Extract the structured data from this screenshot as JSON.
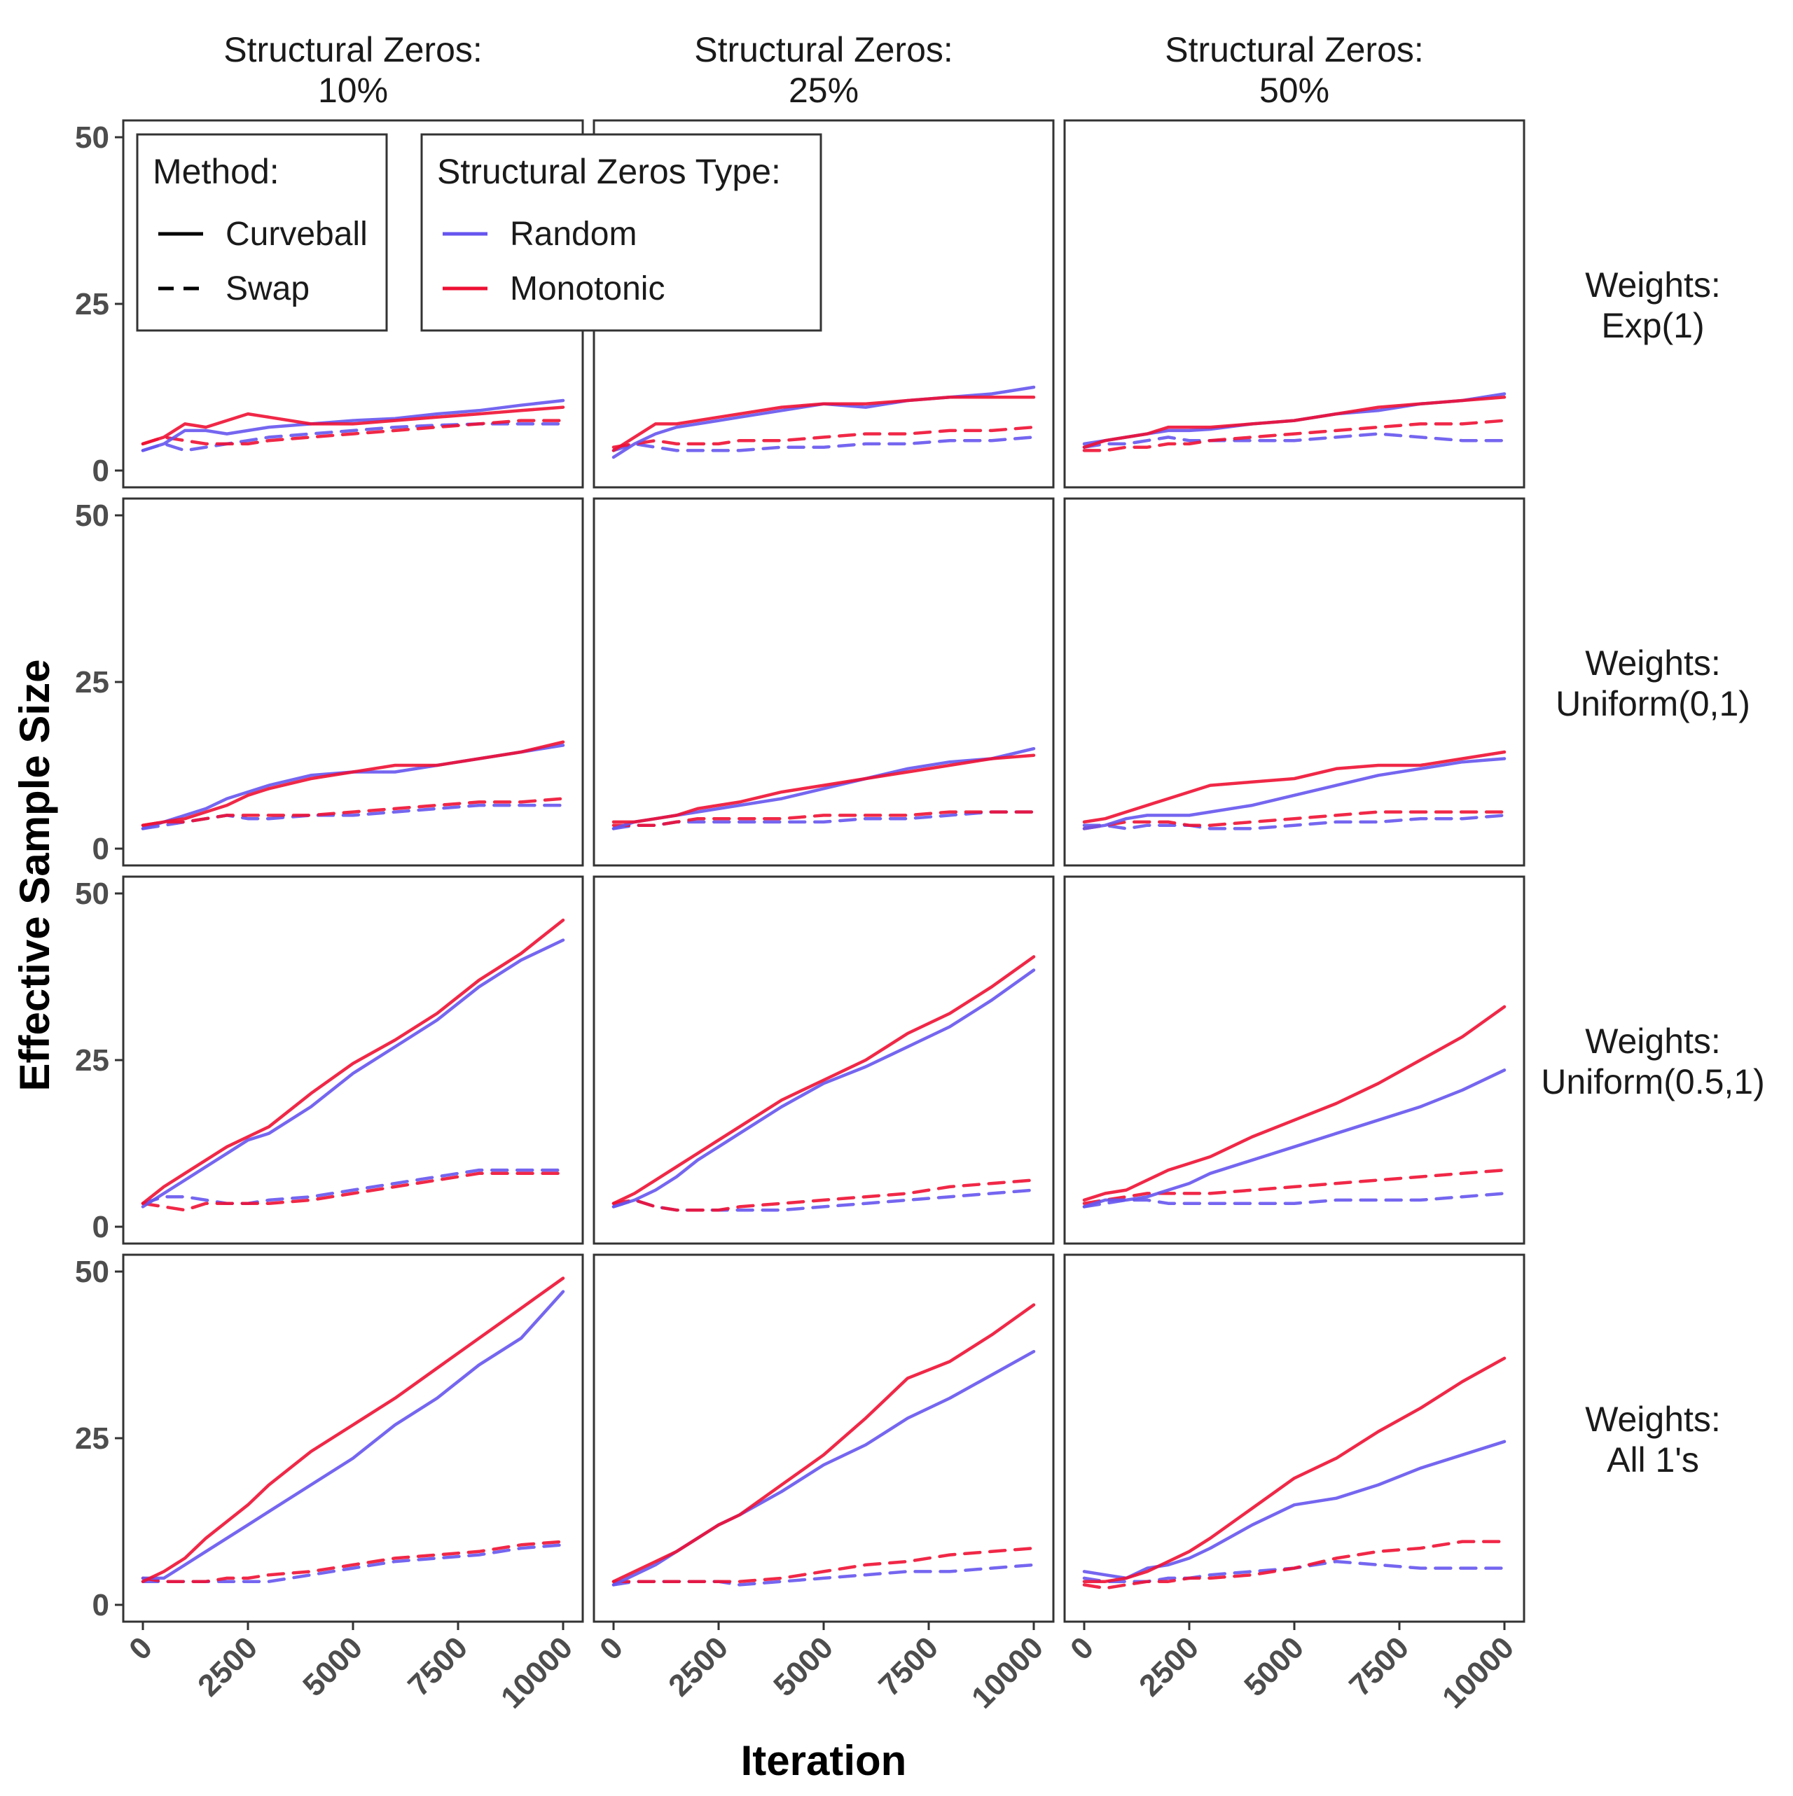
{
  "chart_data": {
    "type": "line",
    "xlabel": "Iteration",
    "ylabel": "Effective Sample Size",
    "xlim": [
      0,
      10000
    ],
    "ylim": [
      0,
      50
    ],
    "x_ticks": [
      "0",
      "2500",
      "5000",
      "7500",
      "10000"
    ],
    "y_ticks": [
      "0",
      "25",
      "50"
    ],
    "column_strips": [
      [
        "Structural Zeros:",
        "10%"
      ],
      [
        "Structural Zeros:",
        "25%"
      ],
      [
        "Structural Zeros:",
        "50%"
      ]
    ],
    "row_strips": [
      [
        "Weights:",
        "Exp(1)"
      ],
      [
        "Weights:",
        "Uniform(0,1)"
      ],
      [
        "Weights:",
        "Uniform(0.5,1)"
      ],
      [
        "Weights:",
        "All 1's"
      ]
    ],
    "legend": {
      "placement": "top-left inside",
      "method": {
        "title": "Method:",
        "items": [
          "Curveball",
          "Swap"
        ]
      },
      "zeros_type": {
        "title": "Structural Zeros Type:",
        "items": [
          "Random",
          "Monotonic"
        ]
      }
    },
    "colors": {
      "Random": "#6655ee",
      "Monotonic": "#ee1133"
    },
    "x": [
      0,
      500,
      1000,
      1500,
      2000,
      2500,
      3000,
      4000,
      5000,
      6000,
      7000,
      8000,
      9000,
      10000
    ],
    "panels": [
      [
        {
          "Curveball-Random": [
            3,
            4,
            6,
            6,
            5.5,
            6,
            6.5,
            7,
            7.5,
            7.8,
            8.5,
            9,
            9.8,
            10.5
          ],
          "Curveball-Monotonic": [
            4,
            5,
            7,
            6.5,
            7.5,
            8.5,
            8,
            7,
            7,
            7.5,
            8,
            8.5,
            9,
            9.5
          ],
          "Swap-Random": [
            3,
            4,
            3,
            3.5,
            4,
            4.5,
            5,
            5.5,
            6,
            6.5,
            6.8,
            7,
            7,
            7
          ],
          "Swap-Monotonic": [
            4,
            5,
            4.5,
            4,
            4,
            4,
            4.5,
            5,
            5.5,
            6,
            6.5,
            7,
            7.5,
            7.5
          ]
        },
        {
          "Curveball-Random": [
            2,
            4,
            5.5,
            6.5,
            7,
            7.5,
            8,
            9,
            10,
            9.5,
            10.5,
            11,
            11.5,
            12.5
          ],
          "Curveball-Monotonic": [
            3,
            5,
            7,
            7,
            7.5,
            8,
            8.5,
            9.5,
            10,
            10,
            10.5,
            11,
            11,
            11
          ],
          "Swap-Random": [
            3,
            4,
            3.5,
            3,
            3,
            3,
            3,
            3.5,
            3.5,
            4,
            4,
            4.5,
            4.5,
            5
          ],
          "Swap-Monotonic": [
            3.5,
            4,
            4.5,
            4,
            4,
            4,
            4.5,
            4.5,
            5,
            5.5,
            5.5,
            6,
            6,
            6.5
          ]
        },
        {
          "Curveball-Random": [
            4,
            4.5,
            5,
            5.5,
            6,
            6,
            6.2,
            7,
            7.5,
            8.5,
            9,
            10,
            10.5,
            11.5
          ],
          "Curveball-Monotonic": [
            3.5,
            4.5,
            5,
            5.5,
            6.5,
            6.5,
            6.5,
            7,
            7.5,
            8.5,
            9.5,
            10,
            10.5,
            11
          ],
          "Swap-Random": [
            3.5,
            4,
            4,
            4.5,
            5,
            4.5,
            4.5,
            4.5,
            4.5,
            5,
            5.5,
            5,
            4.5,
            4.5
          ],
          "Swap-Monotonic": [
            3,
            3,
            3.5,
            3.5,
            4,
            4,
            4.5,
            5,
            5.5,
            6,
            6.5,
            7,
            7,
            7.5
          ]
        }
      ],
      [
        {
          "Curveball-Random": [
            3,
            4,
            5,
            6,
            7.5,
            8.5,
            9.5,
            11,
            11.5,
            11.5,
            12.5,
            13.5,
            14.5,
            15.5
          ],
          "Curveball-Monotonic": [
            3.5,
            4,
            4.5,
            5.5,
            6.5,
            8,
            9,
            10.5,
            11.5,
            12.5,
            12.5,
            13.5,
            14.5,
            16
          ],
          "Swap-Random": [
            3,
            3.5,
            4,
            4.5,
            5,
            4.5,
            4.5,
            5,
            5,
            5.5,
            6,
            6.5,
            6.5,
            6.5
          ],
          "Swap-Monotonic": [
            3.5,
            4,
            4,
            4.5,
            5,
            5,
            5,
            5,
            5.5,
            6,
            6.5,
            7,
            7,
            7.5
          ]
        },
        {
          "Curveball-Random": [
            3,
            4,
            4.5,
            5,
            5.5,
            6,
            6.5,
            7.5,
            9,
            10.5,
            12,
            13,
            13.5,
            15
          ],
          "Curveball-Monotonic": [
            4,
            4,
            4.5,
            5,
            6,
            6.5,
            7,
            8.5,
            9.5,
            10.5,
            11.5,
            12.5,
            13.5,
            14
          ],
          "Swap-Random": [
            3,
            3.5,
            3.5,
            4,
            4,
            4,
            4,
            4,
            4,
            4.5,
            4.5,
            5,
            5.5,
            5.5
          ],
          "Swap-Monotonic": [
            3.5,
            3.5,
            3.5,
            4,
            4.5,
            4.5,
            4.5,
            4.5,
            5,
            5,
            5,
            5.5,
            5.5,
            5.5
          ]
        },
        {
          "Curveball-Random": [
            3,
            3.5,
            4.5,
            5,
            5,
            5,
            5.5,
            6.5,
            8,
            9.5,
            11,
            12,
            13,
            13.5
          ],
          "Curveball-Monotonic": [
            4,
            4.5,
            5.5,
            6.5,
            7.5,
            8.5,
            9.5,
            10,
            10.5,
            12,
            12.5,
            12.5,
            13.5,
            14.5
          ],
          "Swap-Random": [
            3.5,
            3.5,
            3,
            3.5,
            3.5,
            3.5,
            3,
            3,
            3.5,
            4,
            4,
            4.5,
            4.5,
            5
          ],
          "Swap-Monotonic": [
            3,
            3.5,
            4,
            4,
            4,
            3.5,
            3.5,
            4,
            4.5,
            5,
            5.5,
            5.5,
            5.5,
            5.5
          ]
        }
      ],
      [
        {
          "Curveball-Random": [
            3,
            5,
            7,
            9,
            11,
            13,
            14,
            18,
            23,
            27,
            31,
            36,
            40,
            43
          ],
          "Curveball-Monotonic": [
            3.5,
            6,
            8,
            10,
            12,
            13.5,
            15,
            20,
            24.5,
            28,
            32,
            37,
            41,
            46
          ],
          "Swap-Random": [
            3.5,
            4.5,
            4.5,
            4,
            3.5,
            3.5,
            4,
            4.5,
            5.5,
            6.5,
            7.5,
            8.5,
            8.5,
            8.5
          ],
          "Swap-Monotonic": [
            3.5,
            3,
            2.5,
            3.5,
            3.5,
            3.5,
            3.5,
            4,
            5,
            6,
            7,
            8,
            8,
            8
          ]
        },
        {
          "Curveball-Random": [
            3,
            4,
            5.5,
            7.5,
            10,
            12,
            14,
            18,
            21.5,
            24,
            27,
            30,
            34,
            38.5
          ],
          "Curveball-Monotonic": [
            3.5,
            5,
            7,
            9,
            11,
            13,
            15,
            19,
            22,
            25,
            29,
            32,
            36,
            40.5
          ],
          "Swap-Random": [
            3,
            4,
            3,
            2.5,
            2.5,
            2.5,
            2.5,
            2.5,
            3,
            3.5,
            4,
            4.5,
            5,
            5.5
          ],
          "Swap-Monotonic": [
            3.5,
            4,
            3,
            2.5,
            2.5,
            2.5,
            3,
            3.5,
            4,
            4.5,
            5,
            6,
            6.5,
            7
          ]
        },
        {
          "Curveball-Random": [
            3,
            4,
            4,
            4.5,
            5.5,
            6.5,
            8,
            10,
            12,
            14,
            16,
            18,
            20.5,
            23.5
          ],
          "Curveball-Monotonic": [
            4,
            5,
            5.5,
            7,
            8.5,
            9.5,
            10.5,
            13.5,
            16,
            18.5,
            21.5,
            25,
            28.5,
            33
          ],
          "Swap-Random": [
            3,
            3.5,
            4,
            4,
            3.5,
            3.5,
            3.5,
            3.5,
            3.5,
            4,
            4,
            4,
            4.5,
            5
          ],
          "Swap-Monotonic": [
            3.5,
            4,
            4.5,
            5,
            5,
            5,
            5,
            5.5,
            6,
            6.5,
            7,
            7.5,
            8,
            8.5
          ]
        }
      ],
      [
        {
          "Curveball-Random": [
            4,
            4,
            6,
            8,
            10,
            12,
            14,
            18,
            22,
            27,
            31,
            36,
            40,
            47
          ],
          "Curveball-Monotonic": [
            3.5,
            5,
            7,
            10,
            12.5,
            15,
            18,
            23,
            27,
            31,
            35.5,
            40,
            44.5,
            49
          ],
          "Swap-Random": [
            3.5,
            3.5,
            3.5,
            3.5,
            3.5,
            3.5,
            3.5,
            4.5,
            5.5,
            6.5,
            7,
            7.5,
            8.5,
            9
          ],
          "Swap-Monotonic": [
            4,
            3.5,
            3.5,
            3.5,
            4,
            4,
            4.5,
            5,
            6,
            7,
            7.5,
            8,
            9,
            9.5
          ]
        },
        {
          "Curveball-Random": [
            3,
            4.5,
            6,
            8,
            10,
            12,
            13.5,
            17,
            21,
            24,
            28,
            31,
            34.5,
            38
          ],
          "Curveball-Monotonic": [
            3.5,
            5,
            6.5,
            8,
            10,
            12,
            13.5,
            18,
            22.5,
            28,
            34,
            36.5,
            40.5,
            45
          ],
          "Swap-Random": [
            3,
            3.5,
            3.5,
            3.5,
            3.5,
            3.5,
            3,
            3.5,
            4,
            4.5,
            5,
            5,
            5.5,
            6
          ],
          "Swap-Monotonic": [
            3.5,
            3.5,
            3.5,
            3.5,
            3.5,
            3.5,
            3.5,
            4,
            5,
            6,
            6.5,
            7.5,
            8,
            8.5
          ]
        },
        {
          "Curveball-Random": [
            5,
            4.5,
            4,
            5.5,
            6,
            7,
            8.5,
            12,
            15,
            16,
            18,
            20.5,
            22.5,
            24.5
          ],
          "Curveball-Monotonic": [
            3.5,
            3.5,
            4,
            5,
            6.5,
            8,
            10,
            14.5,
            19,
            22,
            26,
            29.5,
            33.5,
            37
          ],
          "Swap-Random": [
            4,
            3.5,
            3.5,
            3.5,
            4,
            4,
            4.5,
            5,
            5.5,
            6.5,
            6,
            5.5,
            5.5,
            5.5
          ],
          "Swap-Monotonic": [
            3,
            2.5,
            3,
            3.5,
            3.5,
            4,
            4,
            4.5,
            5.5,
            7,
            8,
            8.5,
            9.5,
            9.5
          ]
        }
      ]
    ]
  }
}
